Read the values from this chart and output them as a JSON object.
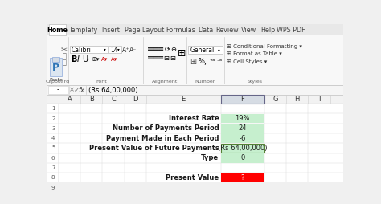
{
  "ribbon_tabs": [
    "Home",
    "Templafy",
    "Insert",
    "Page Layout",
    "Formulas",
    "Data",
    "Review",
    "View",
    "Help",
    "WPS PDF"
  ],
  "formula_bar_text": "(Rs 64,00,000)",
  "col_headers": [
    "A",
    "B",
    "C",
    "D",
    "E",
    "F",
    "G",
    "H",
    "I"
  ],
  "row_labels": [
    "",
    "Interest Rate",
    "Number of Payments Period",
    "Payment Made in Each Period",
    "Present Value of Future Payments",
    "Type",
    "",
    "Present Value",
    ""
  ],
  "values": [
    "",
    "19%",
    "24",
    "-6",
    "(Rs 64,00,000)",
    "0",
    "",
    "?",
    ""
  ],
  "green_rows": [
    1,
    2,
    3,
    5
  ],
  "green_border_rows": [
    4
  ],
  "red_rows": [
    7
  ],
  "green_fill": "#c6efce",
  "red_fill": "#ff0000",
  "tab_bg": "#f0f0f0",
  "ribbon_bg": "#f8f8f8",
  "sheet_bg": "#ffffff",
  "col_header_bg": "#f2f2f2",
  "col_header_sel_bg": "#d6dce4",
  "grid_color": "#d0d0d0",
  "row_header_color": "#595959"
}
